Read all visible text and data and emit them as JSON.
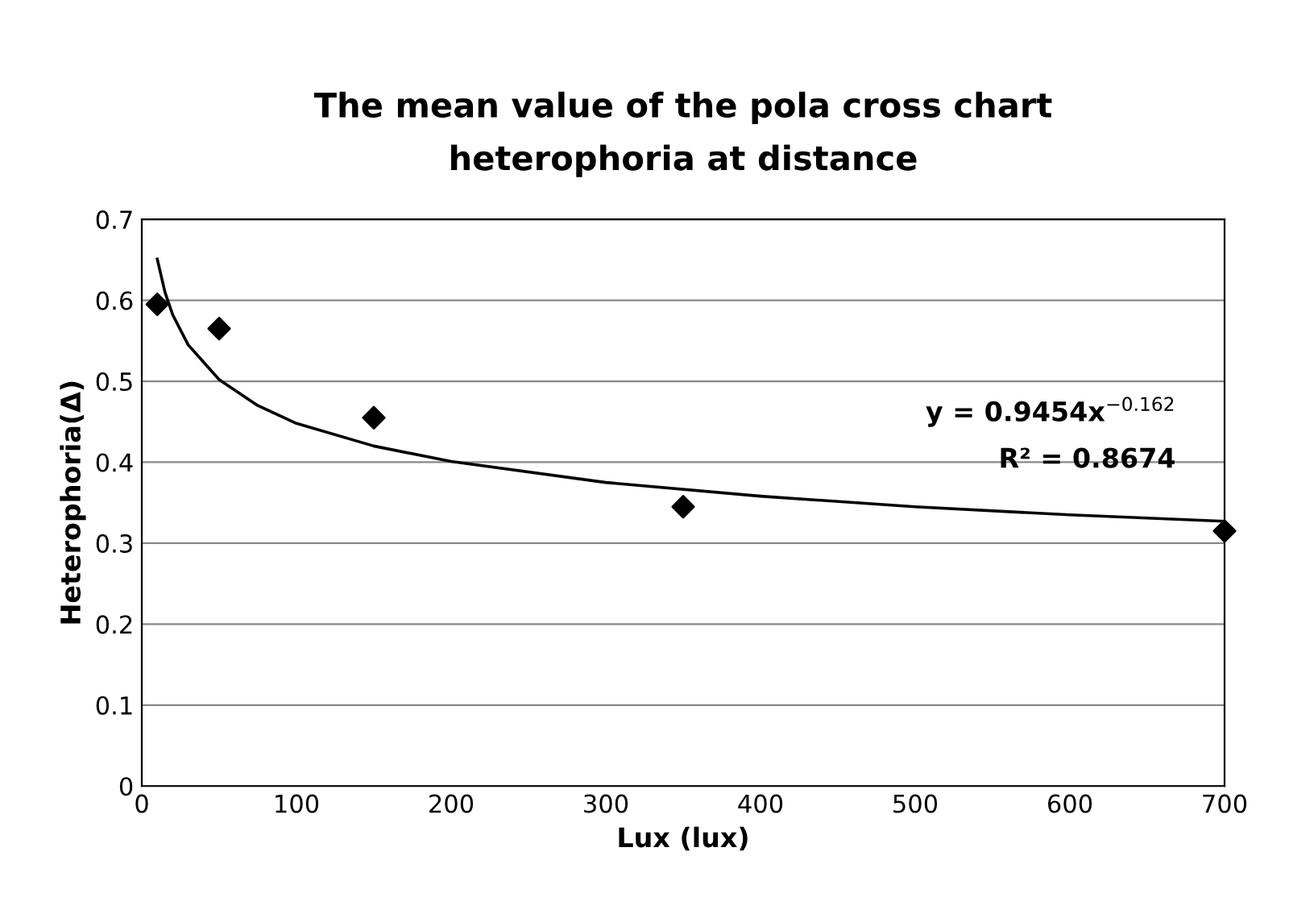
{
  "chart_data": {
    "type": "scatter",
    "title": "The mean value of the pola cross chart\nheterophoria at distance",
    "xlabel": "Lux (lux)",
    "ylabel": "Heterophoria(Δ)",
    "series": [
      {
        "color": "#000000",
        "marker": "diamond",
        "x": [
          10,
          50,
          150,
          350,
          700
        ],
        "values": [
          0.595,
          0.565,
          0.455,
          0.345,
          0.315
        ]
      },
      {
        "type": "line",
        "color": "#000000",
        "marker": "none",
        "x": [
          10,
          15,
          20,
          30,
          50,
          75,
          100,
          150,
          200,
          300,
          400,
          500,
          600,
          700
        ],
        "values": [
          0.651,
          0.61,
          0.582,
          0.545,
          0.502,
          0.47,
          0.448,
          0.42,
          0.401,
          0.375,
          0.358,
          0.345,
          0.335,
          0.327
        ]
      }
    ],
    "annotations": [
      "y = 0.9454x$^{−0.162}$",
      "R² = 0.8674"
    ],
    "xlim": [
      0,
      700
    ],
    "xticks": [
      0,
      100,
      200,
      300,
      400,
      500,
      600,
      700
    ],
    "ylim": [
      0,
      0.7
    ],
    "yticks": [
      0,
      0.1,
      0.2,
      0.3,
      0.4,
      0.5,
      0.6,
      0.7
    ],
    "grid": "y",
    "legend": false
  }
}
